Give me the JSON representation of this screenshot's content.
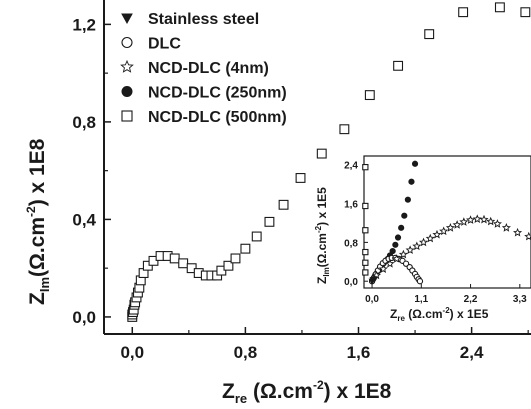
{
  "chart_data": [
    {
      "type": "scatter",
      "title": "",
      "xlabel": {
        "main": "Z",
        "sub": "re",
        "unit": " (Ω.cm",
        "sup": "-2",
        "tail": ") x 1E8"
      },
      "ylabel": {
        "main": "Z",
        "sub": "Im",
        "unit": "(Ω.cm",
        "sup": "-2",
        "tail": ") x 1E8"
      },
      "xlim": [
        -0.2,
        2.82
      ],
      "ylim": [
        -0.07,
        1.3
      ],
      "x_ticks": [
        0.0,
        0.8,
        1.6,
        2.4
      ],
      "x_tick_labels": [
        "0,0",
        "0,8",
        "1,6",
        "2,4"
      ],
      "y_ticks": [
        0.0,
        0.4,
        0.8,
        1.2
      ],
      "y_tick_labels": [
        "0,0",
        "0,4",
        "0,8",
        "1,2"
      ],
      "grid": false,
      "legend_position": "top-left",
      "legend": [
        {
          "label": "Stainless steel",
          "marker": "triangle-down"
        },
        {
          "label": "DLC",
          "marker": "circle-open"
        },
        {
          "label": "NCD-DLC (4nm)",
          "marker": "star-open"
        },
        {
          "label": "NCD-DLC (250nm)",
          "marker": "circle-filled"
        },
        {
          "label": "NCD-DLC (500nm)",
          "marker": "square-open"
        }
      ],
      "series": [
        {
          "name": "NCD-DLC (500nm)",
          "marker": "square-open",
          "x": [
            0.0,
            0.0,
            0.005,
            0.01,
            0.015,
            0.02,
            0.03,
            0.04,
            0.05,
            0.06,
            0.08,
            0.11,
            0.15,
            0.2,
            0.25,
            0.3,
            0.36,
            0.42,
            0.47,
            0.52,
            0.56,
            0.6,
            0.63,
            0.68,
            0.73,
            0.8,
            0.88,
            0.97,
            1.07,
            1.19,
            1.34,
            1.5,
            1.68,
            1.88,
            2.1,
            2.34,
            2.6,
            2.78
          ],
          "y": [
            0.0,
            0.01,
            0.02,
            0.03,
            0.05,
            0.06,
            0.08,
            0.1,
            0.12,
            0.15,
            0.18,
            0.21,
            0.23,
            0.25,
            0.25,
            0.24,
            0.22,
            0.2,
            0.18,
            0.17,
            0.17,
            0.17,
            0.19,
            0.21,
            0.24,
            0.28,
            0.33,
            0.39,
            0.46,
            0.57,
            0.67,
            0.77,
            0.91,
            1.03,
            1.16,
            1.25,
            1.27,
            1.25
          ]
        }
      ]
    },
    {
      "type": "scatter",
      "title": "",
      "xlabel": {
        "main": "Z",
        "sub": "re",
        "unit": " (Ω.cm",
        "sup": "-2",
        "tail": ") x 1E5"
      },
      "ylabel": {
        "main": "Z",
        "sub": "Im",
        "unit": "(Ω.cm",
        "sup": "-2",
        "tail": ") x 1E5"
      },
      "xlim": [
        -0.18,
        3.55
      ],
      "ylim": [
        -0.14,
        2.58
      ],
      "x_ticks": [
        0.0,
        1.1,
        2.2,
        3.3
      ],
      "x_tick_labels": [
        "0,0",
        "1,1",
        "2,2",
        "3,3"
      ],
      "y_ticks": [
        0.0,
        0.8,
        1.6,
        2.4
      ],
      "y_tick_labels": [
        "0,0",
        "0,8",
        "1,6",
        "2,4"
      ],
      "grid": false,
      "legend_position": "none",
      "series": [
        {
          "name": "NCD-DLC (500nm)",
          "marker": "square-open",
          "x": [
            -0.15,
            -0.15,
            -0.15,
            -0.15,
            -0.15,
            -0.15
          ],
          "y": [
            2.35,
            1.55,
            1.05,
            0.6,
            0.38,
            0.18
          ]
        },
        {
          "name": "NCD-DLC (250nm)",
          "marker": "circle-filled",
          "x": [
            0.0,
            0.03,
            0.06,
            0.1,
            0.14,
            0.18,
            0.22,
            0.26,
            0.3,
            0.35,
            0.4,
            0.46,
            0.52,
            0.58,
            0.65,
            0.72,
            0.8,
            0.88,
            0.96
          ],
          "y": [
            0.0,
            0.05,
            0.1,
            0.16,
            0.22,
            0.28,
            0.32,
            0.37,
            0.42,
            0.46,
            0.53,
            0.62,
            0.75,
            0.9,
            1.1,
            1.35,
            1.68,
            2.05,
            2.42
          ]
        },
        {
          "name": "DLC",
          "marker": "circle-open",
          "x": [
            0.0,
            0.04,
            0.08,
            0.13,
            0.18,
            0.24,
            0.3,
            0.37,
            0.44,
            0.52,
            0.6,
            0.68,
            0.76,
            0.84,
            0.9,
            0.96,
            1.0,
            1.04,
            1.07
          ],
          "y": [
            0.0,
            0.07,
            0.14,
            0.22,
            0.3,
            0.37,
            0.42,
            0.46,
            0.48,
            0.48,
            0.46,
            0.42,
            0.36,
            0.29,
            0.22,
            0.15,
            0.09,
            0.04,
            0.0
          ]
        },
        {
          "name": "NCD-DLC (4nm)",
          "marker": "star-open",
          "x": [
            0.1,
            0.25,
            0.4,
            0.55,
            0.7,
            0.85,
            1.0,
            1.15,
            1.3,
            1.45,
            1.6,
            1.75,
            1.9,
            2.05,
            2.2,
            2.35,
            2.5,
            2.65,
            2.8,
            3.0,
            3.25,
            3.5
          ],
          "y": [
            0.12,
            0.25,
            0.36,
            0.46,
            0.55,
            0.64,
            0.72,
            0.8,
            0.88,
            0.96,
            1.03,
            1.1,
            1.16,
            1.22,
            1.26,
            1.28,
            1.27,
            1.23,
            1.18,
            1.1,
            1.0,
            0.92
          ]
        },
        {
          "name": "Stainless steel",
          "marker": "triangle-down",
          "x": [
            0.0,
            0.02,
            0.05
          ],
          "y": [
            0.0,
            0.03,
            0.05
          ]
        }
      ]
    }
  ]
}
